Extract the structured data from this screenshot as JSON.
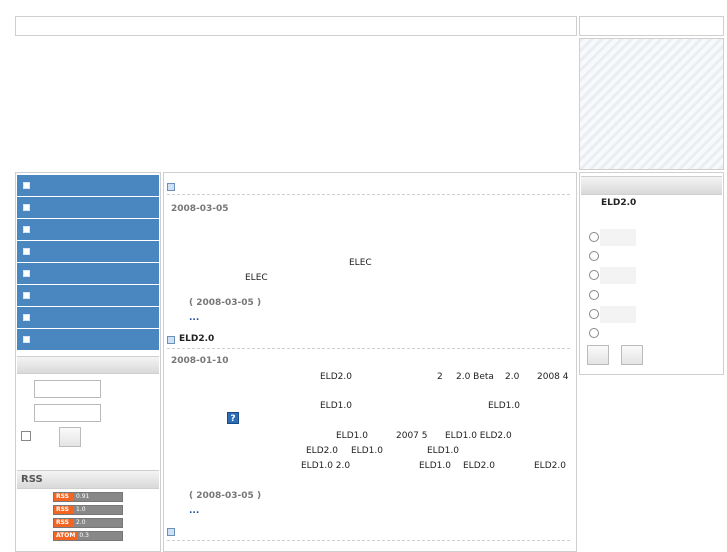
{
  "left": {
    "nav_items": [
      "",
      "",
      "",
      "",
      "",
      "",
      "",
      ""
    ],
    "rss": {
      "heading": "RSS",
      "feeds": [
        {
          "label": "RSS",
          "version": "0.91"
        },
        {
          "label": "RSS",
          "version": "1.0"
        },
        {
          "label": "RSS",
          "version": "2.0"
        },
        {
          "label": "ATOM",
          "version": "0.3"
        }
      ]
    }
  },
  "center": {
    "post1": {
      "date": "2008-03-05",
      "line1": "ELEC",
      "line2": "ELEC",
      "meta": "( 2008-03-05 )",
      "more": "..."
    },
    "post2": {
      "title": "ELD2.0",
      "date": "2008-01-10",
      "l1a": "ELD2.0",
      "l1b": "2",
      "l1c": "2.0 Beta",
      "l1d": "2.0",
      "l1e": "2008 4",
      "l2a": "ELD1.0",
      "l2b": "ELD1.0",
      "help": "?",
      "l3a": "ELD1.0",
      "l3b": "2007 5",
      "l3c": "ELD1.0 ELD2.0",
      "l4a": "ELD2.0",
      "l4b": "ELD1.0",
      "l4c": "ELD1.0",
      "l5a": "ELD1.0 2.0",
      "l5b": "ELD1.0",
      "l5c": "ELD2.0",
      "l5d": "ELD2.0",
      "meta": "( 2008-03-05 )",
      "more": "..."
    }
  },
  "right": {
    "poll_title": "ELD2.0"
  }
}
